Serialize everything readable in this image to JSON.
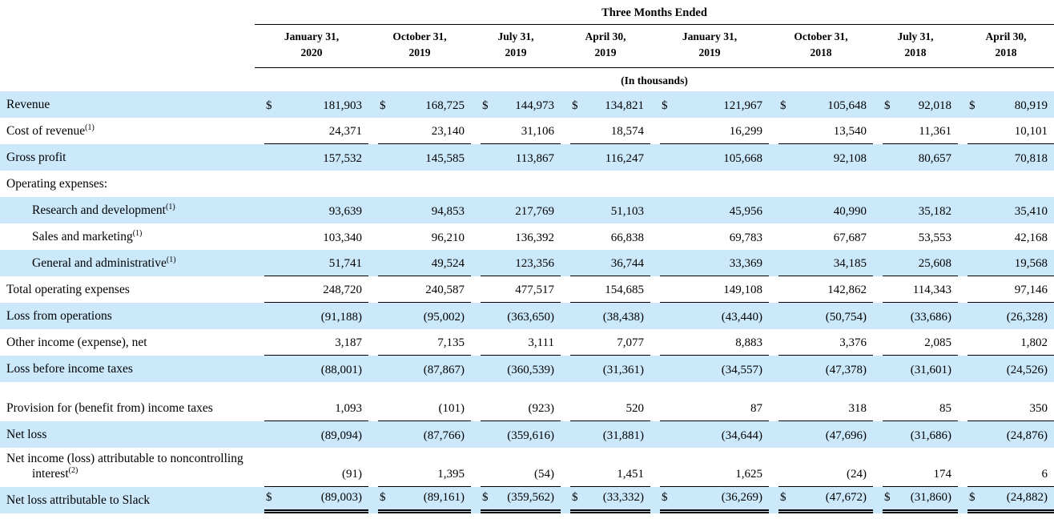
{
  "header": {
    "title": "Three Months Ended",
    "units": "(In thousands)",
    "columns": [
      {
        "line1": "January 31,",
        "line2": "2020"
      },
      {
        "line1": "October 31,",
        "line2": "2019"
      },
      {
        "line1": "July 31,",
        "line2": "2019"
      },
      {
        "line1": "April 30,",
        "line2": "2019"
      },
      {
        "line1": "January 31,",
        "line2": "2019"
      },
      {
        "line1": "October 31,",
        "line2": "2018"
      },
      {
        "line1": "July 31,",
        "line2": "2018"
      },
      {
        "line1": "April 30,",
        "line2": "2018"
      }
    ]
  },
  "colors": {
    "stripe": "#cbe9fb",
    "rule": "#000000",
    "text": "#000000"
  },
  "rows": [
    {
      "label": "Revenue",
      "sup": "",
      "indent": false,
      "hang": false,
      "tall": false,
      "stripe": true,
      "dollar": true,
      "underline": "none",
      "values": [
        "181,903",
        "168,725",
        "144,973",
        "134,821",
        "121,967",
        "105,648",
        "92,018",
        "80,919"
      ]
    },
    {
      "label": "Cost of revenue",
      "sup": "(1)",
      "indent": false,
      "hang": false,
      "tall": false,
      "stripe": false,
      "dollar": false,
      "underline": "single",
      "values": [
        "24,371",
        "23,140",
        "31,106",
        "18,574",
        "16,299",
        "13,540",
        "11,361",
        "10,101"
      ]
    },
    {
      "label": "Gross profit",
      "sup": "",
      "indent": false,
      "hang": false,
      "tall": false,
      "stripe": true,
      "dollar": false,
      "underline": "none",
      "values": [
        "157,532",
        "145,585",
        "113,867",
        "116,247",
        "105,668",
        "92,108",
        "80,657",
        "70,818"
      ]
    },
    {
      "label": "Operating expenses:",
      "sup": "",
      "indent": false,
      "hang": false,
      "tall": false,
      "stripe": false,
      "dollar": false,
      "underline": "none",
      "values": [
        "",
        "",
        "",
        "",
        "",
        "",
        "",
        ""
      ]
    },
    {
      "label": "Research and development",
      "sup": "(1)",
      "indent": true,
      "hang": false,
      "tall": false,
      "stripe": true,
      "dollar": false,
      "underline": "none",
      "values": [
        "93,639",
        "94,853",
        "217,769",
        "51,103",
        "45,956",
        "40,990",
        "35,182",
        "35,410"
      ]
    },
    {
      "label": "Sales and marketing",
      "sup": "(1)",
      "indent": true,
      "hang": false,
      "tall": false,
      "stripe": false,
      "dollar": false,
      "underline": "none",
      "values": [
        "103,340",
        "96,210",
        "136,392",
        "66,838",
        "69,783",
        "67,687",
        "53,553",
        "42,168"
      ]
    },
    {
      "label": "General and administrative",
      "sup": "(1)",
      "indent": true,
      "hang": false,
      "tall": false,
      "stripe": true,
      "dollar": false,
      "underline": "single",
      "values": [
        "51,741",
        "49,524",
        "123,356",
        "36,744",
        "33,369",
        "34,185",
        "25,608",
        "19,568"
      ]
    },
    {
      "label": "Total operating expenses",
      "sup": "",
      "indent": false,
      "hang": false,
      "tall": false,
      "stripe": false,
      "dollar": false,
      "underline": "single",
      "values": [
        "248,720",
        "240,587",
        "477,517",
        "154,685",
        "149,108",
        "142,862",
        "114,343",
        "97,146"
      ]
    },
    {
      "label": "Loss from operations",
      "sup": "",
      "indent": false,
      "hang": false,
      "tall": false,
      "stripe": true,
      "dollar": false,
      "underline": "none",
      "values": [
        "(91,188)",
        "(95,002)",
        "(363,650)",
        "(38,438)",
        "(43,440)",
        "(50,754)",
        "(33,686)",
        "(26,328)"
      ]
    },
    {
      "label": "Other income (expense), net",
      "sup": "",
      "indent": false,
      "hang": false,
      "tall": false,
      "stripe": false,
      "dollar": false,
      "underline": "single",
      "values": [
        "3,187",
        "7,135",
        "3,111",
        "7,077",
        "8,883",
        "3,376",
        "2,085",
        "1,802"
      ]
    },
    {
      "label": "Loss before income taxes",
      "sup": "",
      "indent": false,
      "hang": false,
      "tall": false,
      "stripe": true,
      "dollar": false,
      "underline": "none",
      "values": [
        "(88,001)",
        "(87,867)",
        "(360,539)",
        "(31,361)",
        "(34,557)",
        "(47,378)",
        "(31,601)",
        "(24,526)"
      ]
    },
    {
      "label": "Provision for (benefit from) income taxes",
      "sup": "",
      "indent": false,
      "hang": true,
      "tall": true,
      "stripe": false,
      "dollar": false,
      "underline": "single",
      "values": [
        "1,093",
        "(101)",
        "(923)",
        "520",
        "87",
        "318",
        "85",
        "350"
      ]
    },
    {
      "label": "Net loss",
      "sup": "",
      "indent": false,
      "hang": false,
      "tall": false,
      "stripe": true,
      "dollar": false,
      "underline": "none",
      "values": [
        "(89,094)",
        "(87,766)",
        "(359,616)",
        "(31,881)",
        "(34,644)",
        "(47,696)",
        "(31,686)",
        "(24,876)"
      ]
    },
    {
      "label": "Net income (loss) attributable to noncontrolling interest",
      "sup": "(2)",
      "indent": false,
      "hang": true,
      "tall": true,
      "stripe": false,
      "dollar": false,
      "underline": "single",
      "values": [
        "(91)",
        "1,395",
        "(54)",
        "1,451",
        "1,625",
        "(24)",
        "174",
        "6"
      ]
    },
    {
      "label": "Net loss attributable to Slack",
      "sup": "",
      "indent": false,
      "hang": false,
      "tall": false,
      "stripe": true,
      "dollar": true,
      "underline": "double",
      "values": [
        "(89,003)",
        "(89,161)",
        "(359,562)",
        "(33,332)",
        "(36,269)",
        "(47,672)",
        "(31,860)",
        "(24,882)"
      ]
    }
  ]
}
